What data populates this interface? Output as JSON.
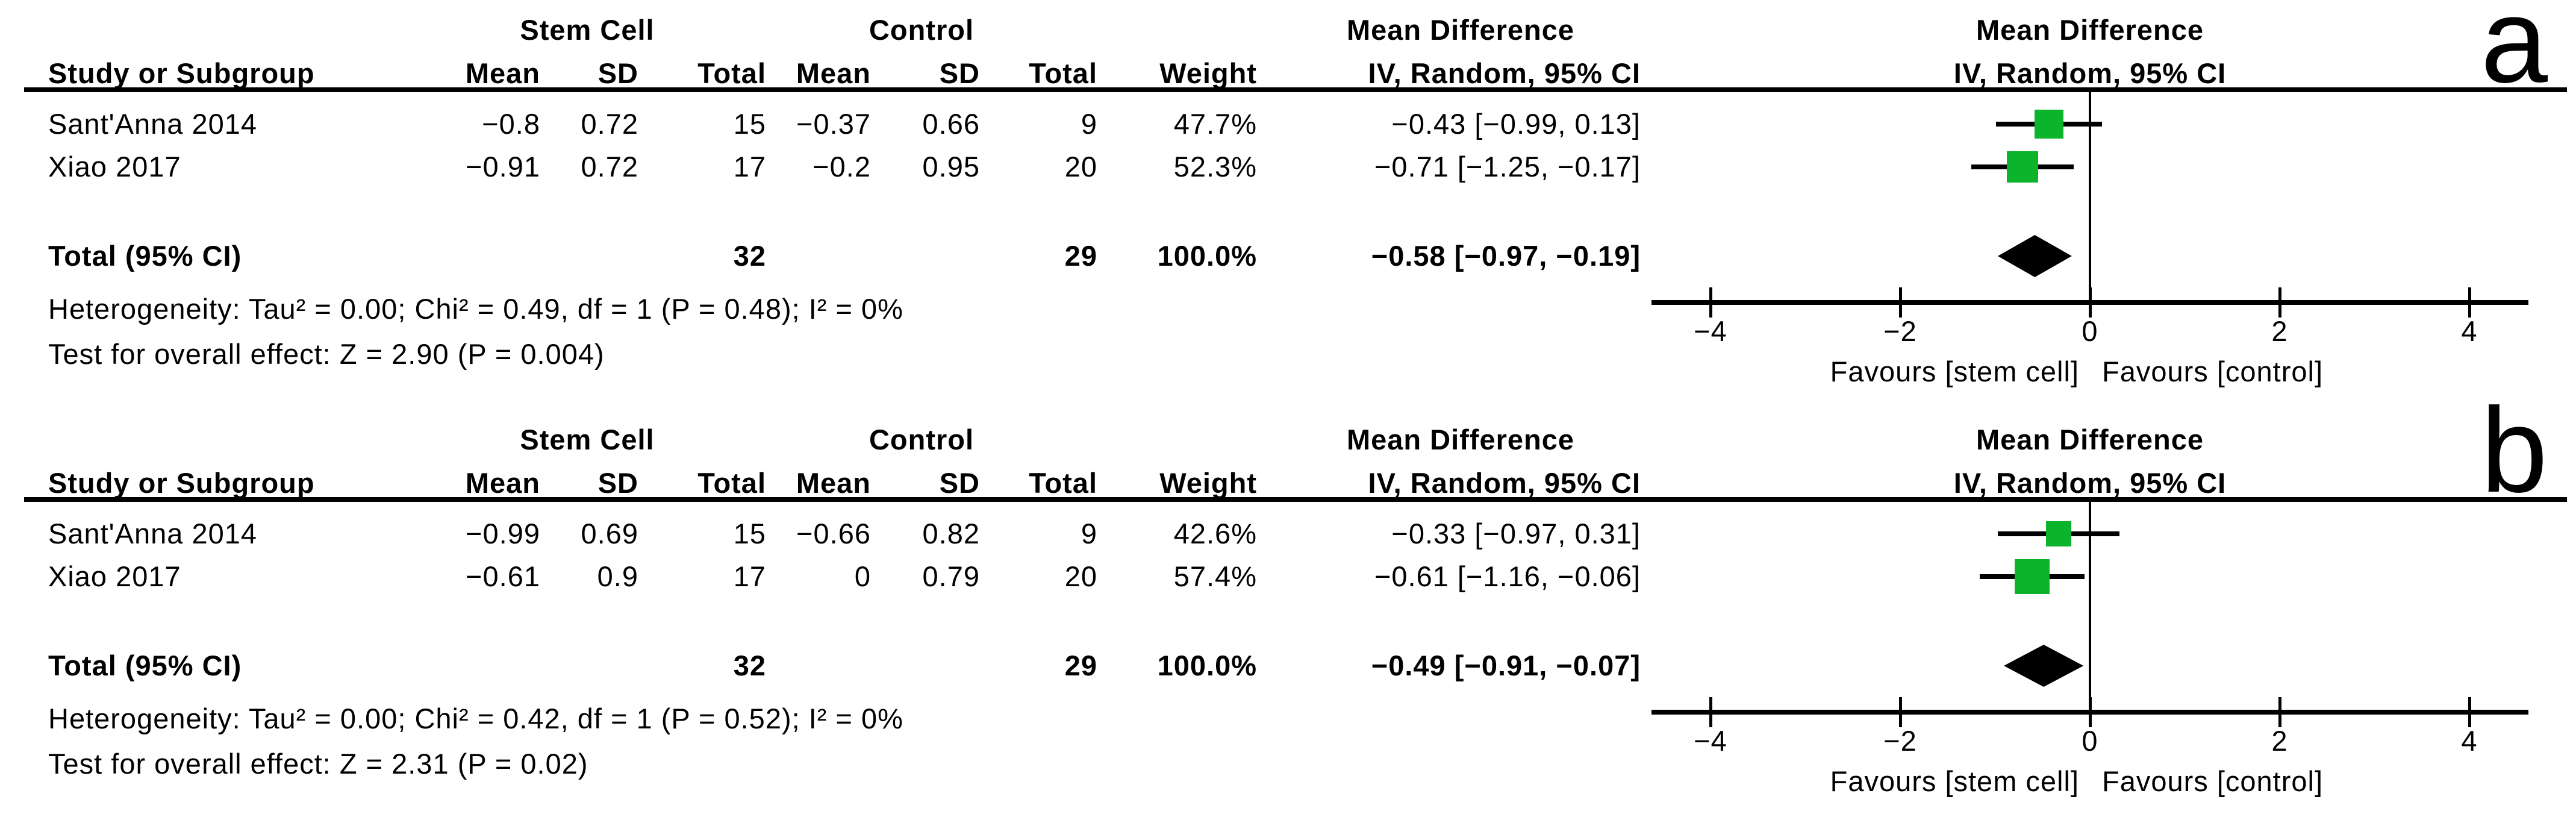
{
  "colors": {
    "marker": "#0CB42C",
    "line": "#000000",
    "background": "#FFFFFF"
  },
  "chart_data": [
    {
      "type": "forest",
      "letter": "a",
      "group_headers": {
        "experimental": "Stem Cell",
        "control": "Control",
        "md_text": "Mean Difference",
        "md_plot": "Mean Difference"
      },
      "column_headers": {
        "study": "Study or Subgroup",
        "exp_mean": "Mean",
        "exp_sd": "SD",
        "exp_total": "Total",
        "ctl_mean": "Mean",
        "ctl_sd": "SD",
        "ctl_total": "Total",
        "weight": "Weight",
        "ci_text": "IV, Random, 95% CI",
        "ci_plot": "IV, Random, 95% CI"
      },
      "rows": [
        {
          "study": "Sant'Anna 2014",
          "cells": {
            "exp_mean": "−0.8",
            "exp_sd": "0.72",
            "exp_total": "15",
            "ctl_mean": "−0.37",
            "ctl_sd": "0.66",
            "ctl_total": "9",
            "weight": "47.7%",
            "ci_text": "−0.43 [−0.99, 0.13]"
          },
          "md": -0.43,
          "ci_lo": -0.99,
          "ci_hi": 0.13,
          "weight_pct": 47.7
        },
        {
          "study": "Xiao 2017",
          "cells": {
            "exp_mean": "−0.91",
            "exp_sd": "0.72",
            "exp_total": "17",
            "ctl_mean": "−0.2",
            "ctl_sd": "0.95",
            "ctl_total": "20",
            "weight": "52.3%",
            "ci_text": "−0.71 [−1.25, −0.17]"
          },
          "md": -0.71,
          "ci_lo": -1.25,
          "ci_hi": -0.17,
          "weight_pct": 52.3
        }
      ],
      "total": {
        "label": "Total (95% CI)",
        "exp_total": "32",
        "ctl_total": "29",
        "weight": "100.0%",
        "ci_text": "−0.58 [−0.97, −0.19]",
        "md": -0.58,
        "ci_lo": -0.97,
        "ci_hi": -0.19
      },
      "heterogeneity": "Heterogeneity: Tau² = 0.00; Chi² = 0.49, df = 1 (P = 0.48); I² = 0%",
      "overall_effect": "Test for overall effect: Z = 2.90 (P = 0.004)",
      "axis": {
        "ticks": [
          -4,
          -2,
          0,
          2,
          4
        ],
        "tick_labels": [
          "−4",
          "−2",
          "0",
          "2",
          "4"
        ],
        "xlim": [
          -4.6,
          4.6
        ],
        "favours_left": "Favours [stem cell]",
        "favours_right": "Favours [control]"
      }
    },
    {
      "type": "forest",
      "letter": "b",
      "group_headers": {
        "experimental": "Stem Cell",
        "control": "Control",
        "md_text": "Mean Difference",
        "md_plot": "Mean Difference"
      },
      "column_headers": {
        "study": "Study or Subgroup",
        "exp_mean": "Mean",
        "exp_sd": "SD",
        "exp_total": "Total",
        "ctl_mean": "Mean",
        "ctl_sd": "SD",
        "ctl_total": "Total",
        "weight": "Weight",
        "ci_text": "IV, Random, 95% CI",
        "ci_plot": "IV, Random, 95% CI"
      },
      "rows": [
        {
          "study": "Sant'Anna 2014",
          "cells": {
            "exp_mean": "−0.99",
            "exp_sd": "0.69",
            "exp_total": "15",
            "ctl_mean": "−0.66",
            "ctl_sd": "0.82",
            "ctl_total": "9",
            "weight": "42.6%",
            "ci_text": "−0.33 [−0.97, 0.31]"
          },
          "md": -0.33,
          "ci_lo": -0.97,
          "ci_hi": 0.31,
          "weight_pct": 42.6
        },
        {
          "study": "Xiao 2017",
          "cells": {
            "exp_mean": "−0.61",
            "exp_sd": "0.9",
            "exp_total": "17",
            "ctl_mean": "0",
            "ctl_sd": "0.79",
            "ctl_total": "20",
            "weight": "57.4%",
            "ci_text": "−0.61 [−1.16, −0.06]"
          },
          "md": -0.61,
          "ci_lo": -1.16,
          "ci_hi": -0.06,
          "weight_pct": 57.4
        }
      ],
      "total": {
        "label": "Total (95% CI)",
        "exp_total": "32",
        "ctl_total": "29",
        "weight": "100.0%",
        "ci_text": "−0.49 [−0.91, −0.07]",
        "md": -0.49,
        "ci_lo": -0.91,
        "ci_hi": -0.07
      },
      "heterogeneity": "Heterogeneity: Tau² = 0.00; Chi² = 0.42, df = 1 (P = 0.52); I² = 0%",
      "overall_effect": "Test for overall effect: Z = 2.31 (P = 0.02)",
      "axis": {
        "ticks": [
          -4,
          -2,
          0,
          2,
          4
        ],
        "tick_labels": [
          "−4",
          "−2",
          "0",
          "2",
          "4"
        ],
        "xlim": [
          -4.6,
          4.6
        ],
        "favours_left": "Favours [stem cell]",
        "favours_right": "Favours [control]"
      }
    }
  ]
}
